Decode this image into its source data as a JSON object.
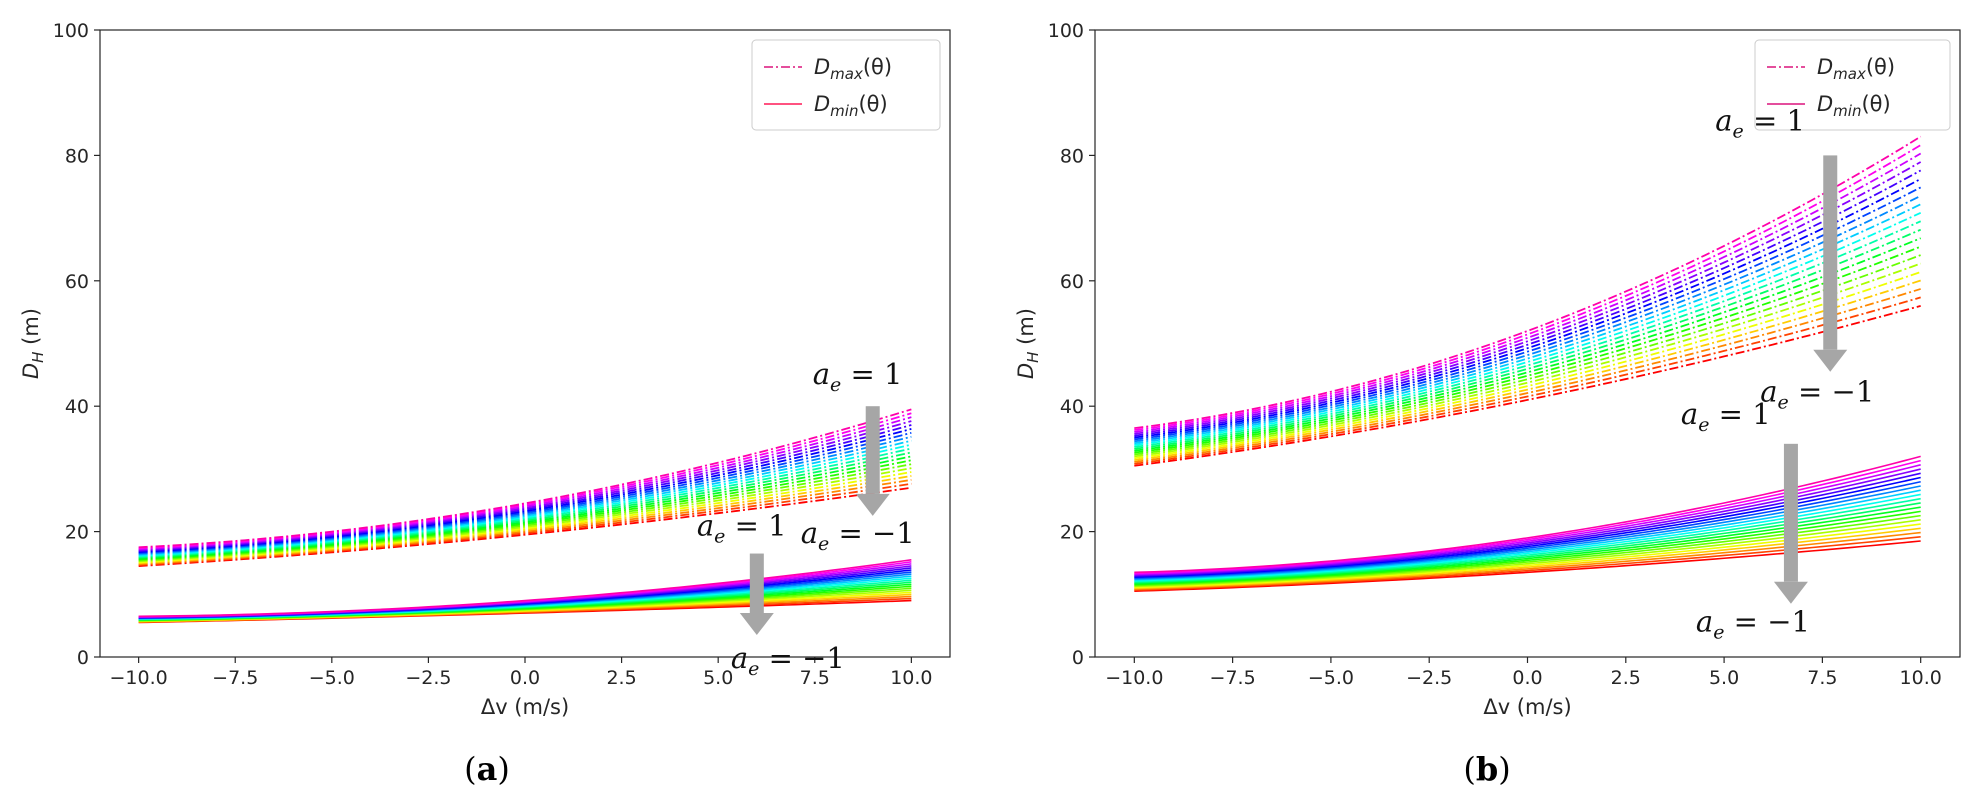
{
  "chart_data": [
    {
      "type": "line",
      "panel_label": "a",
      "xlabel": "Δv (m/s)",
      "ylabel": "D_H (m)",
      "xlim": [
        -11,
        11
      ],
      "ylim": [
        0,
        100
      ],
      "xticks": [
        -10.0,
        -7.5,
        -5.0,
        -2.5,
        0.0,
        2.5,
        5.0,
        7.5,
        10.0
      ],
      "xtick_labels": [
        "−10.0",
        "−7.5",
        "−5.0",
        "−2.5",
        "0.0",
        "2.5",
        "5.0",
        "7.5",
        "10.0"
      ],
      "yticks": [
        0,
        20,
        40,
        60,
        80,
        100
      ],
      "ytick_labels": [
        "0",
        "20",
        "40",
        "60",
        "80",
        "100"
      ],
      "legend": {
        "position": "top-right",
        "entries": [
          {
            "label": "D_max(θ)",
            "style": "dashdot",
            "color": "#e0358f"
          },
          {
            "label": "D_min(θ)",
            "style": "solid",
            "color": "#ff3a6e"
          }
        ]
      },
      "curve_count": 21,
      "a_e_range": [
        1,
        -1
      ],
      "dmax_family": {
        "x": [
          -10,
          0,
          10
        ],
        "a_e_plus1": [
          17.5,
          24.5,
          39.5
        ],
        "a_e_minus1": [
          14.5,
          19.5,
          27.0
        ]
      },
      "dmin_family": {
        "x": [
          -10,
          0,
          10
        ],
        "a_e_plus1": [
          6.5,
          9.0,
          15.5
        ],
        "a_e_minus1": [
          5.5,
          7.0,
          9.0
        ]
      },
      "annotations": [
        {
          "text_top": "a_e = 1",
          "text_bottom": "a_e = −1",
          "x": 9.0,
          "from_y": 40,
          "to_y": 22.5
        },
        {
          "text_top": "a_e = 1",
          "text_bottom": "a_e = −1",
          "x": 6.0,
          "from_y": 16.5,
          "to_y": 3.5
        }
      ],
      "ae_symbol": "a",
      "ae_sub": "e",
      "ae_top": "= 1",
      "ae_bottom": "= −1"
    },
    {
      "type": "line",
      "panel_label": "b",
      "xlabel": "Δv (m/s)",
      "ylabel": "D_H (m)",
      "xlim": [
        -11,
        11
      ],
      "ylim": [
        0,
        100
      ],
      "xticks": [
        -10.0,
        -7.5,
        -5.0,
        -2.5,
        0.0,
        2.5,
        5.0,
        7.5,
        10.0
      ],
      "xtick_labels": [
        "−10.0",
        "−7.5",
        "−5.0",
        "−2.5",
        "0.0",
        "2.5",
        "5.0",
        "7.5",
        "10.0"
      ],
      "yticks": [
        0,
        20,
        40,
        60,
        80,
        100
      ],
      "ytick_labels": [
        "0",
        "20",
        "40",
        "60",
        "80",
        "100"
      ],
      "legend": {
        "position": "top-right",
        "entries": [
          {
            "label": "D_max(θ)",
            "style": "dashdot",
            "color": "#e0358f"
          },
          {
            "label": "D_min(θ)",
            "style": "solid",
            "color": "#e0358f"
          }
        ]
      },
      "curve_count": 21,
      "a_e_range": [
        1,
        -1
      ],
      "dmax_family": {
        "x": [
          -10,
          0,
          10
        ],
        "a_e_plus1": [
          36.5,
          52.0,
          83.0
        ],
        "a_e_minus1": [
          30.5,
          41.0,
          56.0
        ]
      },
      "dmin_family": {
        "x": [
          -10,
          0,
          10
        ],
        "a_e_plus1": [
          13.5,
          19.0,
          32.0
        ],
        "a_e_minus1": [
          10.5,
          13.5,
          18.5
        ]
      },
      "annotations": [
        {
          "text_top": "a_e = 1",
          "text_bottom": "a_e = −1",
          "x": 7.7,
          "from_y": 80,
          "to_y": 45.5
        },
        {
          "text_top": "a_e = 1",
          "text_bottom": "a_e = −1",
          "x": 6.7,
          "from_y": 34,
          "to_y": 8.5
        }
      ],
      "ae_symbol": "a",
      "ae_sub": "e",
      "ae_top": "= 1",
      "ae_bottom": "= −1"
    }
  ],
  "legend_display": {
    "max_main": "D",
    "max_sub": "max",
    "max_arg": "(θ)",
    "min_main": "D",
    "min_sub": "min",
    "min_arg": "(θ)"
  },
  "axis_display": {
    "y_main": "D",
    "y_sub": "H",
    "y_unit": " (m)",
    "x_label": "Δv (m/s)"
  }
}
